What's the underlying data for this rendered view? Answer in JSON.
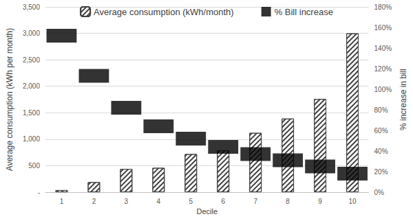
{
  "chart_data": {
    "type": "bar",
    "x_label": "Decile",
    "y_label": "Average consumption (kWh per month)",
    "y2_label": "% increase in bill",
    "categories": [
      "1",
      "2",
      "3",
      "4",
      "5",
      "6",
      "7",
      "8",
      "9",
      "10"
    ],
    "series": [
      {
        "name": "Average consumption (kWh/month)",
        "type": "bar",
        "color": "#404040",
        "values": [
          40,
          190,
          440,
          460,
          720,
          790,
          1120,
          1390,
          1760,
          3000
        ]
      },
      {
        "name": "% Bill increase",
        "type": "scatter",
        "axis": "y2",
        "color": "#000000",
        "marker": "rect",
        "values": [
          152,
          113,
          82,
          64,
          52,
          44,
          37,
          31,
          25,
          18
        ]
      }
    ],
    "ylim": [
      0,
      3500
    ],
    "yticks": [
      {
        "value": 0,
        "label": "-"
      },
      500,
      {
        "value": 1000,
        "label": "1,000"
      },
      {
        "value": 1500,
        "label": "1,500"
      },
      {
        "value": 2000,
        "label": "2,000"
      },
      {
        "value": 2500,
        "label": "2,500"
      },
      {
        "value": 3000,
        "label": "3,000"
      },
      {
        "value": 3500,
        "label": "3,500"
      }
    ],
    "y2lim": [
      0,
      180
    ],
    "y2ticks": [
      {
        "value": 0,
        "label": "0%"
      },
      {
        "value": 20,
        "label": "20%"
      },
      {
        "value": 40,
        "label": "40%"
      },
      {
        "value": 60,
        "label": "60%"
      },
      {
        "value": 80,
        "label": "80%"
      },
      {
        "value": 100,
        "label": "100%"
      },
      {
        "value": 120,
        "label": "120%"
      },
      {
        "value": 140,
        "label": "140%"
      },
      {
        "value": 160,
        "label": "160%"
      },
      {
        "value": 180,
        "label": "180%"
      }
    ],
    "grid": true,
    "legend": "top"
  }
}
